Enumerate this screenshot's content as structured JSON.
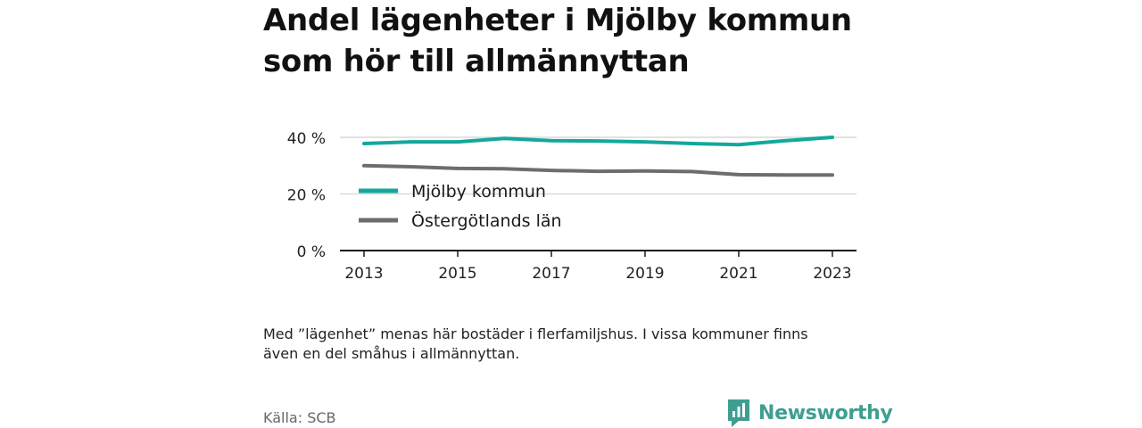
{
  "title_line1": "Andel lägenheter i Mjölby kommun",
  "title_line2": "som hör till allmännyttan",
  "footnote_line1": "Med ”lägenhet” menas här bostäder i flerfamiljshus. I vissa kommuner finns",
  "footnote_line2": "även en del småhus i allmännyttan.",
  "source": "Källa: SCB",
  "brand": "Newsworthy",
  "brand_icon": "newsworthy-logo-icon",
  "colors": {
    "mjolby": "#13a89a",
    "ostergotland": "#6d6d6d",
    "grid": "#d9d9d9",
    "axis": "#1a1a1a",
    "brand": "#3e9e91"
  },
  "chart_data": {
    "type": "line",
    "title": "Andel lägenheter i Mjölby kommun som hör till allmännyttan",
    "x": [
      2013,
      2014,
      2015,
      2016,
      2017,
      2018,
      2019,
      2020,
      2021,
      2022,
      2023
    ],
    "x_ticks": [
      "2013",
      "2015",
      "2017",
      "2019",
      "2021",
      "2023"
    ],
    "y_ticks": [
      "0 %",
      "20 %",
      "40 %"
    ],
    "ylim": [
      0,
      40
    ],
    "grid": "horizontal",
    "legend_position": "left",
    "series": [
      {
        "name": "Mjölby kommun",
        "values": [
          37.8,
          38.4,
          38.4,
          39.6,
          38.8,
          38.7,
          38.4,
          37.8,
          37.4,
          38.8,
          40.0
        ]
      },
      {
        "name": "Östergötlands län",
        "values": [
          30.0,
          29.6,
          29.0,
          28.9,
          28.3,
          28.0,
          28.1,
          27.9,
          26.8,
          26.7,
          26.7
        ]
      }
    ]
  }
}
